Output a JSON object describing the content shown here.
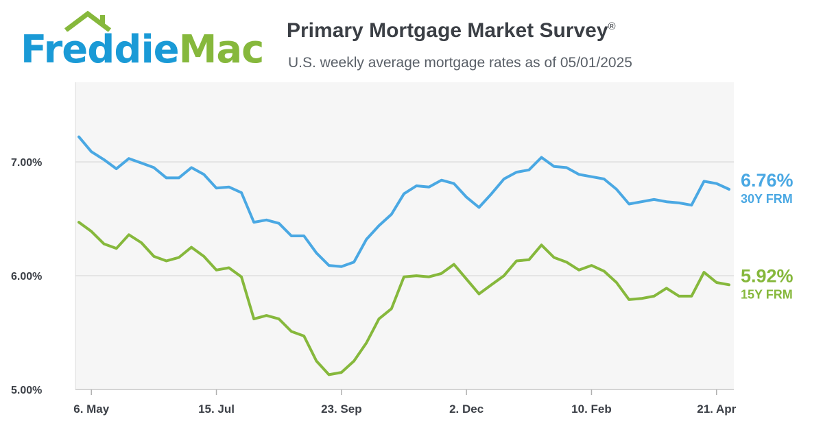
{
  "brand": {
    "logo_text_1": "Freddie",
    "logo_text_2": "Mac",
    "logo_icon": "house-roof-icon"
  },
  "header": {
    "title": "Primary Mortgage Market Survey",
    "title_mark": "®",
    "subtitle": "U.S. weekly average mortgage rates as of 05/01/2025"
  },
  "colors": {
    "series_30y": "#4aa8e3",
    "series_15y": "#86b83c",
    "grid": "#dcdcdc",
    "plot_bg": "#f6f6f6"
  },
  "chart_data": {
    "type": "line",
    "title": "Primary Mortgage Market Survey",
    "subtitle": "U.S. weekly average mortgage rates as of 05/01/2025",
    "xlabel": "",
    "ylabel": "",
    "ylim": [
      5.0,
      7.7
    ],
    "y_ticks": [
      {
        "value": 5.0,
        "label": "5.00%"
      },
      {
        "value": 6.0,
        "label": "6.00%"
      },
      {
        "value": 7.0,
        "label": "7.00%"
      }
    ],
    "x_ticks": [
      {
        "index": 1,
        "label": "6. May"
      },
      {
        "index": 11,
        "label": "15. Jul"
      },
      {
        "index": 21,
        "label": "23. Sep"
      },
      {
        "index": 31,
        "label": "2. Dec"
      },
      {
        "index": 41,
        "label": "10. Feb"
      },
      {
        "index": 51,
        "label": "21. Apr"
      }
    ],
    "x_start": "2024-05-02",
    "x_end": "2025-05-01",
    "x_step": "weekly",
    "grid": "horizontal",
    "legend": "end-labels-right",
    "series": [
      {
        "name": "30Y FRM",
        "end_value": "6.76%",
        "values": [
          7.22,
          7.09,
          7.02,
          6.94,
          7.03,
          6.99,
          6.95,
          6.86,
          6.86,
          6.95,
          6.89,
          6.77,
          6.78,
          6.73,
          6.47,
          6.49,
          6.46,
          6.35,
          6.35,
          6.2,
          6.09,
          6.08,
          6.12,
          6.32,
          6.44,
          6.54,
          6.72,
          6.79,
          6.78,
          6.84,
          6.81,
          6.69,
          6.6,
          6.72,
          6.85,
          6.91,
          6.93,
          7.04,
          6.96,
          6.95,
          6.89,
          6.87,
          6.85,
          6.76,
          6.63,
          6.65,
          6.67,
          6.65,
          6.64,
          6.62,
          6.83,
          6.81,
          6.76
        ]
      },
      {
        "name": "15Y FRM",
        "end_value": "5.92%",
        "values": [
          6.47,
          6.39,
          6.28,
          6.24,
          6.36,
          6.29,
          6.17,
          6.13,
          6.16,
          6.25,
          6.17,
          6.05,
          6.07,
          5.99,
          5.62,
          5.65,
          5.62,
          5.51,
          5.47,
          5.25,
          5.13,
          5.15,
          5.25,
          5.41,
          5.62,
          5.71,
          5.99,
          6.0,
          5.99,
          6.02,
          6.1,
          5.97,
          5.84,
          5.92,
          6.0,
          6.13,
          6.14,
          6.27,
          6.16,
          6.12,
          6.05,
          6.09,
          6.04,
          5.94,
          5.79,
          5.8,
          5.82,
          5.89,
          5.82,
          5.82,
          6.03,
          5.94,
          5.92
        ]
      }
    ]
  }
}
